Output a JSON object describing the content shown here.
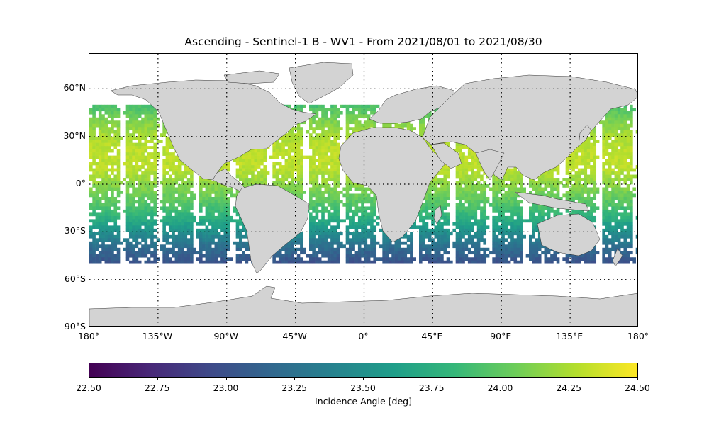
{
  "title": "Ascending - Sentinel-1 B - WV1 - From 2021/08/01 to 2021/08/30",
  "map": {
    "projection": "equirectangular",
    "lon_range": [
      -180,
      180
    ],
    "lat_range": [
      -90,
      90
    ],
    "land_color": "#d3d3d3",
    "ocean_color": "#ffffff",
    "gridlines": "dotted",
    "lat_ticks": [
      {
        "value": 60,
        "label": "60°N"
      },
      {
        "value": 30,
        "label": "30°N"
      },
      {
        "value": 0,
        "label": "0°"
      },
      {
        "value": -30,
        "label": "30°S"
      },
      {
        "value": -60,
        "label": "60°S"
      },
      {
        "value": -90,
        "label": "90°S"
      }
    ],
    "lon_ticks": [
      {
        "value": -180,
        "label": "180°"
      },
      {
        "value": -135,
        "label": "135°W"
      },
      {
        "value": -90,
        "label": "90°W"
      },
      {
        "value": -45,
        "label": "45°W"
      },
      {
        "value": 0,
        "label": "0°"
      },
      {
        "value": 45,
        "label": "45°E"
      },
      {
        "value": 90,
        "label": "90°E"
      },
      {
        "value": 135,
        "label": "135°E"
      },
      {
        "value": 180,
        "label": "180°"
      }
    ]
  },
  "chart_data": {
    "type": "heatmap",
    "variable": "Incidence Angle [deg]",
    "colormap": "viridis",
    "vmin": 22.5,
    "vmax": 24.5,
    "data_lat_range": [
      -50,
      50
    ],
    "pattern": [
      {
        "lat": 50,
        "value": 23.9
      },
      {
        "lat": 40,
        "value": 24.1
      },
      {
        "lat": 30,
        "value": 24.25
      },
      {
        "lat": 20,
        "value": 24.3
      },
      {
        "lat": 10,
        "value": 24.3
      },
      {
        "lat": 0,
        "value": 24.15
      },
      {
        "lat": -10,
        "value": 24.0
      },
      {
        "lat": -20,
        "value": 23.8
      },
      {
        "lat": -30,
        "value": 23.5
      },
      {
        "lat": -40,
        "value": 23.2
      },
      {
        "lat": -50,
        "value": 23.0
      }
    ]
  },
  "colorbar": {
    "label": "Incidence Angle [deg]",
    "ticks": [
      "22.50",
      "22.75",
      "23.00",
      "23.25",
      "23.50",
      "23.75",
      "24.00",
      "24.25",
      "24.50"
    ]
  }
}
